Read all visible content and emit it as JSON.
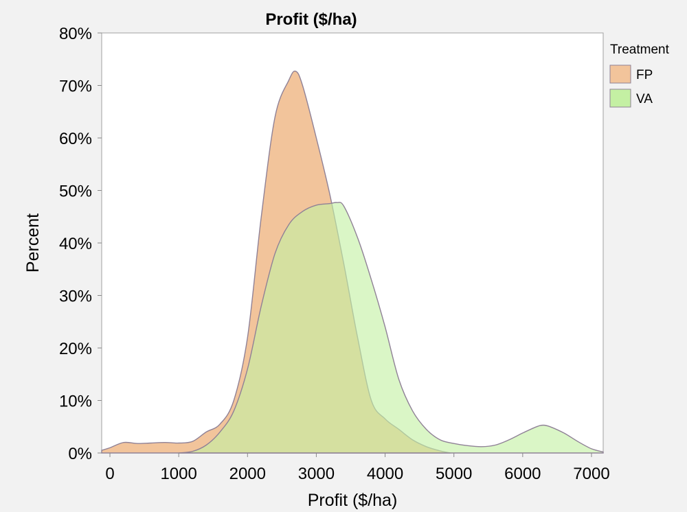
{
  "chart_data": {
    "type": "area",
    "title": "Profit ($/ha)",
    "xlabel": "Profit ($/ha)",
    "ylabel": "Percent",
    "xlim": [
      -120,
      7170
    ],
    "ylim": [
      0,
      80
    ],
    "x_ticks": [
      0,
      1000,
      2000,
      3000,
      4000,
      5000,
      6000,
      7000
    ],
    "x_tick_labels": [
      "0",
      "1000",
      "2000",
      "3000",
      "4000",
      "5000",
      "6000",
      "7000"
    ],
    "y_ticks": [
      0,
      10,
      20,
      30,
      40,
      50,
      60,
      70,
      80
    ],
    "y_tick_labels": [
      "0%",
      "10%",
      "20%",
      "30%",
      "40%",
      "50%",
      "60%",
      "70%",
      "80%"
    ],
    "grid": false,
    "legend": {
      "title": "Treatment",
      "position": "right"
    },
    "series": [
      {
        "name": "FP",
        "color": "#f2c49b",
        "x": [
          -120,
          0,
          200,
          400,
          600,
          800,
          1000,
          1200,
          1400,
          1600,
          1800,
          2000,
          2200,
          2400,
          2600,
          2700,
          2800,
          3000,
          3200,
          3400,
          3600,
          3800,
          4000,
          4200,
          4400,
          4600,
          4800,
          4950
        ],
        "y": [
          0.5,
          1.0,
          2.0,
          1.8,
          1.9,
          2.0,
          1.9,
          2.2,
          4.0,
          5.5,
          10.0,
          22.0,
          45.0,
          64.0,
          71.0,
          72.7,
          70.0,
          60.0,
          49.0,
          36.0,
          22.0,
          10.0,
          6.5,
          4.5,
          2.5,
          1.2,
          0.4,
          0.0
        ]
      },
      {
        "name": "VA",
        "color": "#c4f0a3",
        "x": [
          1000,
          1200,
          1400,
          1600,
          1800,
          2000,
          2200,
          2400,
          2600,
          2800,
          3000,
          3200,
          3300,
          3400,
          3600,
          3800,
          4000,
          4200,
          4400,
          4600,
          4800,
          5000,
          5200,
          5400,
          5600,
          5800,
          6000,
          6200,
          6300,
          6400,
          6600,
          6800,
          7000,
          7170
        ],
        "y": [
          0.0,
          0.3,
          1.5,
          4.0,
          8.0,
          16.0,
          28.0,
          38.0,
          43.5,
          46.0,
          47.2,
          47.5,
          47.7,
          47.0,
          41.0,
          33.0,
          24.0,
          14.0,
          8.0,
          4.5,
          2.5,
          1.8,
          1.4,
          1.2,
          1.5,
          2.5,
          3.8,
          5.0,
          5.3,
          5.0,
          3.8,
          2.2,
          0.8,
          0.2
        ]
      }
    ]
  }
}
